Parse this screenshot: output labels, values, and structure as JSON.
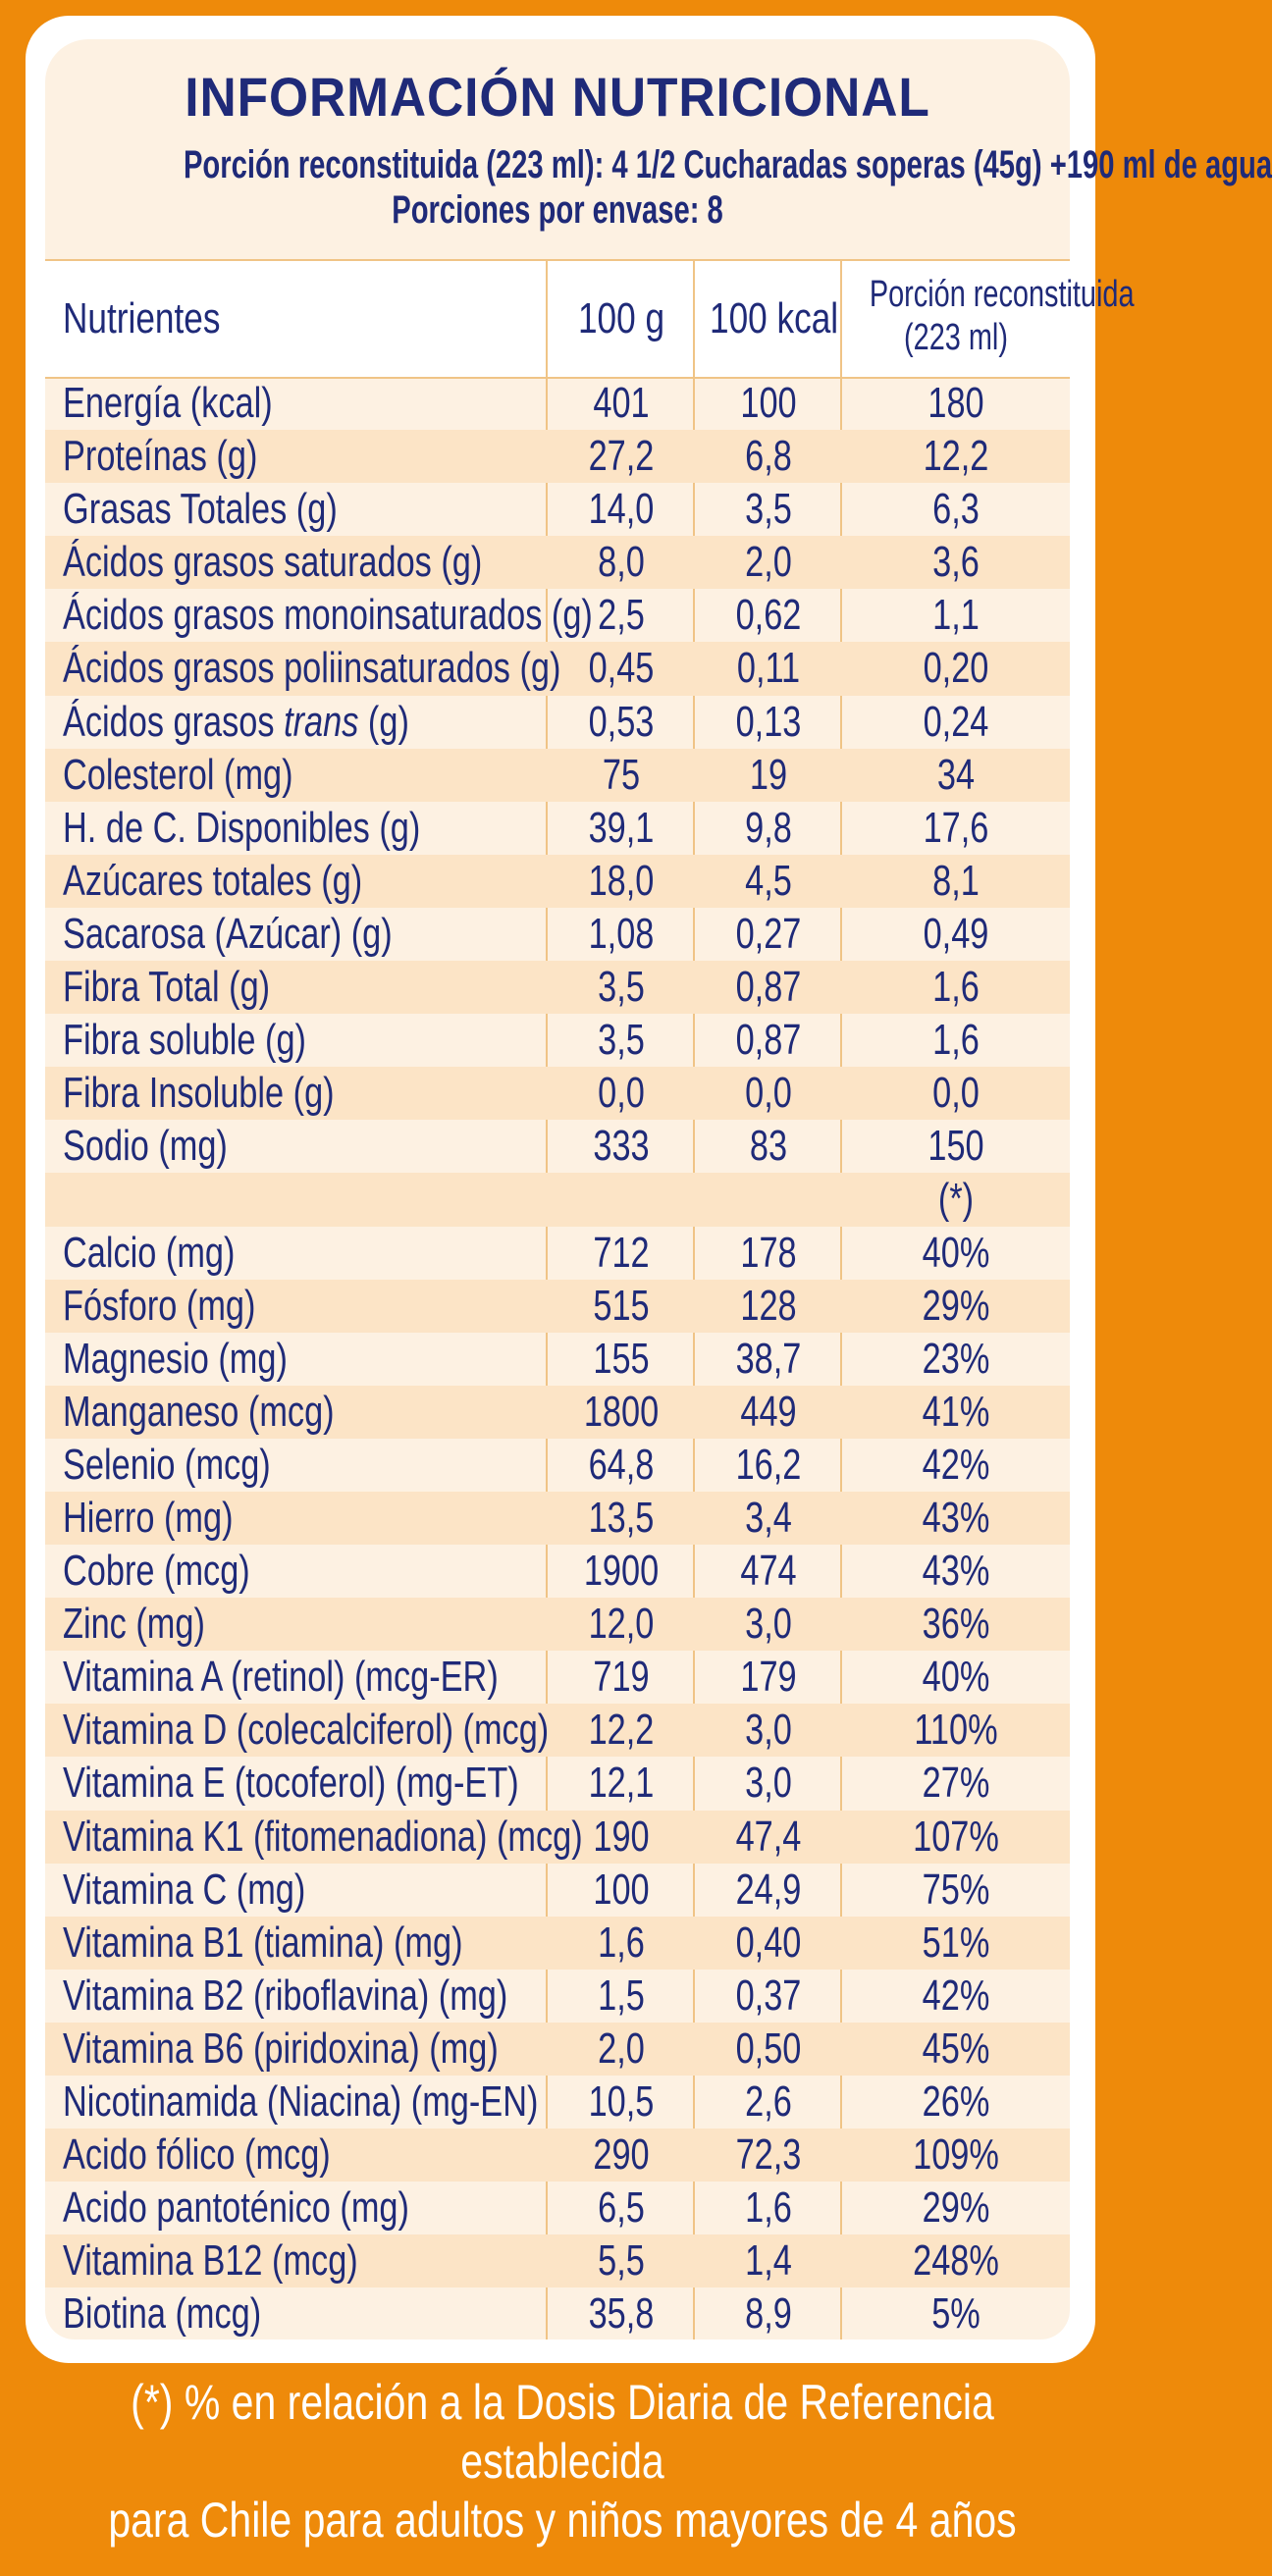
{
  "header": {
    "title": "INFORMACIÓN NUTRICIONAL",
    "serving": "Porción reconstituida (223 ml): 4 1/2 Cucharadas soperas (45g) +190 ml de agua",
    "portions": "Porciones por envase: 8"
  },
  "columns": {
    "nutrients": "Nutrientes",
    "per_100g": "100 g",
    "per_100kcal": "100 kcal",
    "portion_line1": "Porción reconstituida",
    "portion_line2": "(223 ml)"
  },
  "rows": [
    {
      "name": "Energía (kcal)",
      "g": "401",
      "kcal": "100",
      "portion": "180"
    },
    {
      "name": "Proteínas (g)",
      "g": "27,2",
      "kcal": "6,8",
      "portion": "12,2"
    },
    {
      "name": "Grasas Totales (g)",
      "g": "14,0",
      "kcal": "3,5",
      "portion": "6,3"
    },
    {
      "name": "Ácidos grasos saturados (g)",
      "g": "8,0",
      "kcal": "2,0",
      "portion": "3,6"
    },
    {
      "name": "Ácidos grasos monoinsaturados (g)",
      "g": "2,5",
      "kcal": "0,62",
      "portion": "1,1"
    },
    {
      "name": "Ácidos grasos poliinsaturados (g)",
      "g": "0,45",
      "kcal": "0,11",
      "portion": "0,20"
    },
    {
      "name_prefix": "Ácidos grasos ",
      "name_italic": "trans",
      "name_suffix": " (g)",
      "g": "0,53",
      "kcal": "0,13",
      "portion": "0,24"
    },
    {
      "name": "Colesterol (mg)",
      "g": "75",
      "kcal": "19",
      "portion": "34"
    },
    {
      "name": "H. de C. Disponibles (g)",
      "g": "39,1",
      "kcal": "9,8",
      "portion": "17,6"
    },
    {
      "name": "Azúcares totales (g)",
      "g": "18,0",
      "kcal": "4,5",
      "portion": "8,1"
    },
    {
      "name": "Sacarosa (Azúcar) (g)",
      "g": "1,08",
      "kcal": "0,27",
      "portion": "0,49"
    },
    {
      "name": "Fibra Total (g)",
      "g": "3,5",
      "kcal": "0,87",
      "portion": "1,6"
    },
    {
      "name": "Fibra soluble (g)",
      "g": "3,5",
      "kcal": "0,87",
      "portion": "1,6"
    },
    {
      "name": "Fibra Insoluble (g)",
      "g": "0,0",
      "kcal": "0,0",
      "portion": "0,0"
    },
    {
      "name": "Sodio (mg)",
      "g": "333",
      "kcal": "83",
      "portion": "150"
    },
    {
      "name": "",
      "g": "",
      "kcal": "",
      "portion": "(*)"
    },
    {
      "name": "Calcio (mg)",
      "g": "712",
      "kcal": "178",
      "portion": "40%"
    },
    {
      "name": "Fósforo (mg)",
      "g": "515",
      "kcal": "128",
      "portion": "29%"
    },
    {
      "name": "Magnesio (mg)",
      "g": "155",
      "kcal": "38,7",
      "portion": "23%"
    },
    {
      "name": "Manganeso (mcg)",
      "g": "1800",
      "kcal": "449",
      "portion": "41%"
    },
    {
      "name": "Selenio (mcg)",
      "g": "64,8",
      "kcal": "16,2",
      "portion": "42%"
    },
    {
      "name": "Hierro (mg)",
      "g": "13,5",
      "kcal": "3,4",
      "portion": "43%"
    },
    {
      "name": "Cobre (mcg)",
      "g": "1900",
      "kcal": "474",
      "portion": "43%"
    },
    {
      "name": "Zinc (mg)",
      "g": "12,0",
      "kcal": "3,0",
      "portion": "36%"
    },
    {
      "name": "Vitamina A (retinol) (mcg-ER)",
      "g": "719",
      "kcal": "179",
      "portion": "40%"
    },
    {
      "name": "Vitamina D (colecalciferol) (mcg)",
      "g": "12,2",
      "kcal": "3,0",
      "portion": "110%"
    },
    {
      "name": "Vitamina E (tocoferol) (mg-ET)",
      "g": "12,1",
      "kcal": "3,0",
      "portion": "27%"
    },
    {
      "name": "Vitamina K1 (fitomenadiona) (mcg)",
      "g": "190",
      "kcal": "47,4",
      "portion": "107%"
    },
    {
      "name": "Vitamina C (mg)",
      "g": "100",
      "kcal": "24,9",
      "portion": "75%"
    },
    {
      "name": "Vitamina B1 (tiamina) (mg)",
      "g": "1,6",
      "kcal": "0,40",
      "portion": "51%"
    },
    {
      "name": "Vitamina B2 (riboflavina) (mg)",
      "g": "1,5",
      "kcal": "0,37",
      "portion": "42%"
    },
    {
      "name": "Vitamina B6 (piridoxina) (mg)",
      "g": "2,0",
      "kcal": "0,50",
      "portion": "45%"
    },
    {
      "name": "Nicotinamida (Niacina) (mg-EN)",
      "g": "10,5",
      "kcal": "2,6",
      "portion": "26%"
    },
    {
      "name": "Acido fólico (mcg)",
      "g": "290",
      "kcal": "72,3",
      "portion": "109%"
    },
    {
      "name": "Acido pantoténico (mg)",
      "g": "6,5",
      "kcal": "1,6",
      "portion": "29%"
    },
    {
      "name": "Vitamina B12 (mcg)",
      "g": "5,5",
      "kcal": "1,4",
      "portion": "248%"
    },
    {
      "name": "Biotina (mcg)",
      "g": "35,8",
      "kcal": "8,9",
      "portion": "5%"
    }
  ],
  "footnote": {
    "line1": "(*) % en relación a la Dosis Diaria de Referencia establecida",
    "line2": "para Chile para adultos y niños mayores de 4 años"
  },
  "colors": {
    "background": "#EE8A0A",
    "text": "#1F2A78",
    "stripe": "#FCE4C6",
    "panel": "#FDF1E2"
  }
}
